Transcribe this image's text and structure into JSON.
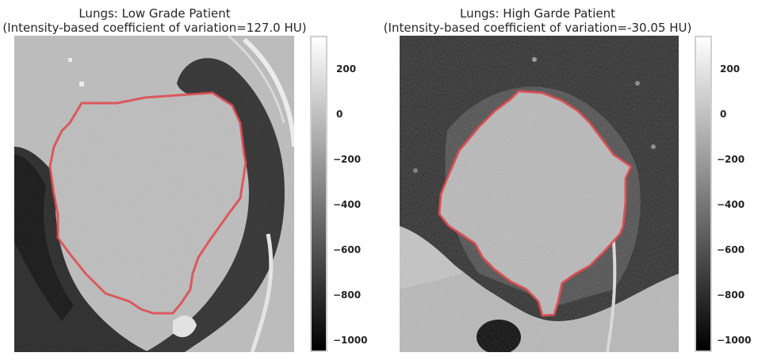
{
  "panels": [
    {
      "title_line1": "Lungs: Low Grade Patient",
      "title_line2": "(Intensity-based coefficient of variation=127.0 HU)"
    },
    {
      "title_line1": "Lungs: High Garde Patient",
      "title_line2": "(Intensity-based coefficient of variation=-30.05 HU)"
    }
  ],
  "colorbar": {
    "range": [
      -1050,
      350
    ],
    "ticks": [
      {
        "value": 200,
        "label": "200"
      },
      {
        "value": 0,
        "label": "0"
      },
      {
        "value": -200,
        "label": "−200"
      },
      {
        "value": -400,
        "label": "−400"
      },
      {
        "value": -600,
        "label": "−600"
      },
      {
        "value": -800,
        "label": "−800"
      },
      {
        "value": -1000,
        "label": "−1000"
      }
    ]
  },
  "contour_color": "#e0474c"
}
